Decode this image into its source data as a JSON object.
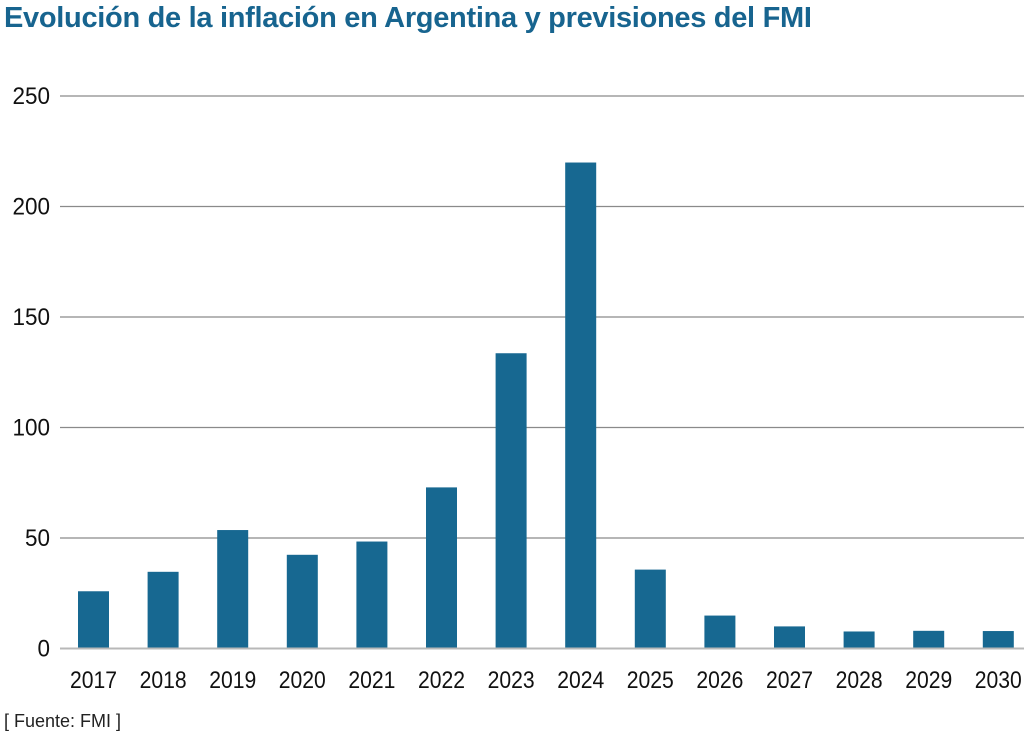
{
  "title": "Evolución de la inflación en Argentina y previsiones del FMI",
  "source": "[ Fuente: FMI ]",
  "colors": {
    "bar": "#176891",
    "title": "#17648f",
    "grid": "#8a8a8a",
    "baseline": "#b8b8b8"
  },
  "chart_data": {
    "type": "bar",
    "title": "Evolución de la inflación en Argentina y previsiones del FMI",
    "xlabel": "",
    "ylabel": "",
    "categories": [
      "2017",
      "2018",
      "2019",
      "2020",
      "2021",
      "2022",
      "2023",
      "2024",
      "2025",
      "2026",
      "2027",
      "2028",
      "2029",
      "2030"
    ],
    "values": [
      25.9,
      34.7,
      53.6,
      42.4,
      48.4,
      72.9,
      133.6,
      219.9,
      35.7,
      14.9,
      10.0,
      7.7,
      8.0,
      7.9
    ],
    "ylim": [
      0,
      250
    ],
    "yticks": [
      0,
      50,
      100,
      150,
      200,
      250
    ],
    "ytick_labels": [
      "0",
      "50",
      "100",
      "150",
      "200",
      "250"
    ],
    "grid": true,
    "legend": "none",
    "source": "[ Fuente: FMI ]"
  }
}
